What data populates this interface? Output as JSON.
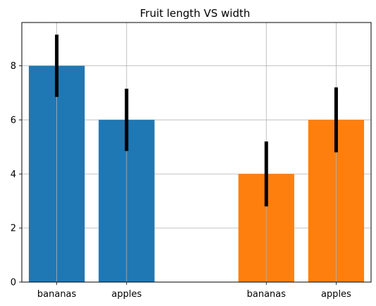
{
  "chart_data": {
    "type": "bar",
    "title": "Fruit length VS width",
    "xlabel": "",
    "ylabel": "",
    "ylim": [
      0,
      9.6
    ],
    "yticks": [
      0,
      2,
      4,
      6,
      8
    ],
    "xlim": [
      -0.5,
      4.5
    ],
    "grid": true,
    "series": [
      {
        "color": "#1f77b4",
        "points": [
          {
            "x": 0,
            "category": "bananas",
            "value": 8,
            "error": 1.15
          },
          {
            "x": 1,
            "category": "apples",
            "value": 6,
            "error": 1.15
          }
        ]
      },
      {
        "color": "#ff7f0e",
        "points": [
          {
            "x": 3,
            "category": "bananas",
            "value": 4,
            "error": 1.2
          },
          {
            "x": 4,
            "category": "apples",
            "value": 6,
            "error": 1.2
          }
        ]
      }
    ],
    "bar_width": 0.8,
    "error_color": "#000000"
  }
}
